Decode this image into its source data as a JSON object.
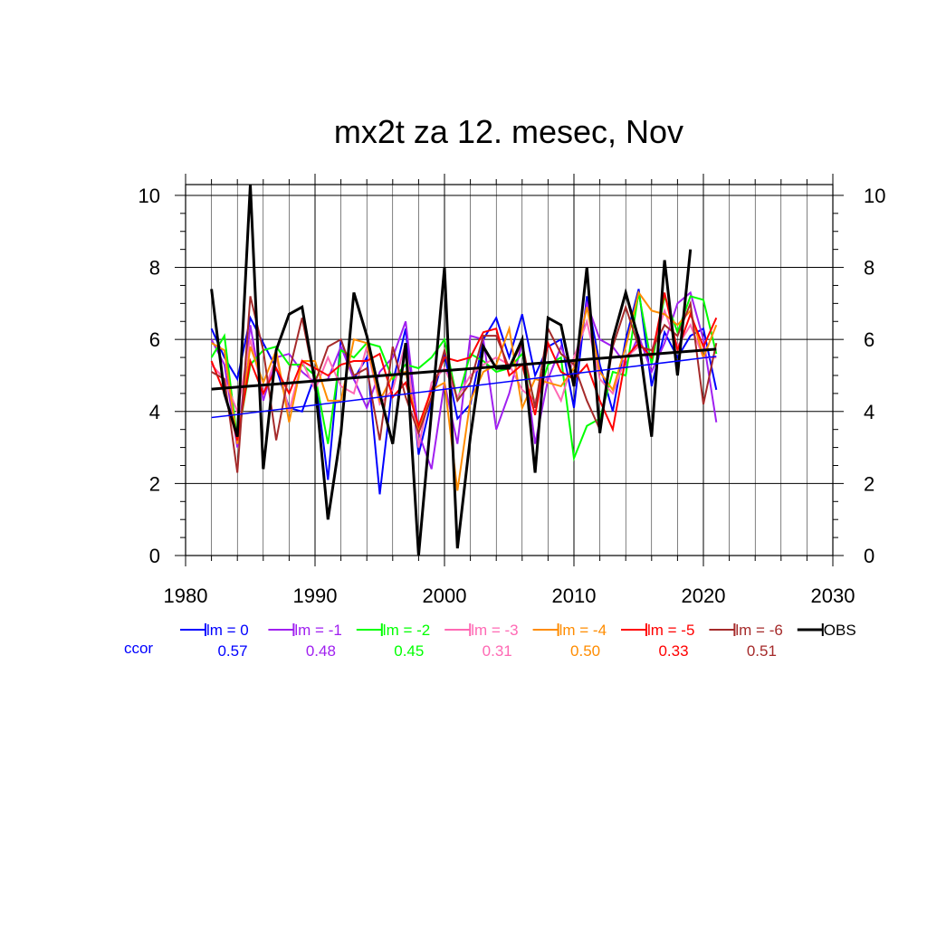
{
  "chart_data": {
    "type": "line",
    "title": "mx2t za 12. mesec, Nov",
    "xlabel": "",
    "ylabel": "",
    "xlim": [
      1980,
      2030
    ],
    "ylim": [
      0,
      10.3
    ],
    "x_ticks": [
      1980,
      1990,
      2000,
      2010,
      2020,
      2030
    ],
    "y_ticks": [
      0,
      2,
      4,
      6,
      8,
      10
    ],
    "grid": true,
    "legend_position": "bottom",
    "corr_label": "ccor",
    "years": [
      1982,
      1983,
      1984,
      1985,
      1986,
      1987,
      1988,
      1989,
      1990,
      1991,
      1992,
      1993,
      1994,
      1995,
      1996,
      1997,
      1998,
      1999,
      2000,
      2001,
      2002,
      2003,
      2004,
      2005,
      2006,
      2007,
      2008,
      2009,
      2010,
      2011,
      2012,
      2013,
      2014,
      2015,
      2016,
      2017,
      2018,
      2019,
      2020,
      2021
    ],
    "series": [
      {
        "name": "lm = 0",
        "color": "#0000ff",
        "ccor": "0.57",
        "values": [
          6.3,
          5.5,
          4.9,
          6.6,
          5.9,
          5.2,
          4.1,
          4.0,
          5.0,
          2.1,
          6.0,
          4.9,
          5.5,
          1.7,
          4.8,
          6.3,
          2.8,
          4.3,
          5.6,
          3.8,
          4.2,
          6.0,
          6.6,
          5.5,
          6.7,
          5.0,
          5.8,
          6.0,
          4.1,
          7.2,
          5.3,
          4.0,
          6.0,
          7.4,
          4.7,
          6.2,
          5.5,
          6.1,
          6.3,
          4.6
        ],
        "trend": [
          3.83,
          5.53
        ]
      },
      {
        "name": "lm = -1",
        "color": "#a020f0",
        "ccor": "0.48",
        "values": [
          6.0,
          5.3,
          3.0,
          6.4,
          4.3,
          5.5,
          5.6,
          5.1,
          4.8,
          4.9,
          5.8,
          4.9,
          4.1,
          5.1,
          5.5,
          6.5,
          3.4,
          2.4,
          4.8,
          3.1,
          6.1,
          6.0,
          3.5,
          4.5,
          5.9,
          3.1,
          4.9,
          5.8,
          4.9,
          7.0,
          6.0,
          5.8,
          5.3,
          6.1,
          5.1,
          5.9,
          7.0,
          7.3,
          6.0,
          3.7
        ],
        "trend": null
      },
      {
        "name": "lm = -2",
        "color": "#00ff00",
        "ccor": "0.45",
        "values": [
          5.5,
          6.1,
          3.2,
          5.3,
          5.7,
          5.8,
          5.3,
          5.3,
          5.0,
          3.1,
          5.7,
          5.5,
          5.9,
          5.8,
          4.9,
          5.3,
          5.2,
          5.5,
          6.0,
          4.3,
          5.6,
          5.4,
          5.1,
          5.2,
          5.6,
          4.2,
          5.3,
          5.5,
          2.7,
          3.6,
          3.8,
          5.1,
          5.0,
          7.3,
          5.3,
          7.2,
          6.2,
          7.2,
          7.1,
          5.6
        ],
        "trend": null
      },
      {
        "name": "lm = -3",
        "color": "#ff69b4",
        "ccor": "0.31",
        "values": [
          5.3,
          4.9,
          4.0,
          6.0,
          4.5,
          5.5,
          4.0,
          5.4,
          4.6,
          5.5,
          4.7,
          4.5,
          5.8,
          4.2,
          4.6,
          5.9,
          3.0,
          4.8,
          5.2,
          4.4,
          5.0,
          5.3,
          5.5,
          5.3,
          4.6,
          4.3,
          5.0,
          4.3,
          5.5,
          6.5,
          4.9,
          4.5,
          5.5,
          5.8,
          5.7,
          6.8,
          5.8,
          6.4,
          5.5,
          5.5
        ],
        "trend": null
      },
      {
        "name": "lm = -4",
        "color": "#ff8c00",
        "ccor": "0.50",
        "values": [
          5.9,
          5.7,
          3.1,
          5.8,
          4.8,
          5.7,
          3.7,
          5.4,
          5.4,
          4.3,
          4.3,
          6.0,
          5.9,
          4.3,
          5.0,
          5.1,
          3.5,
          4.6,
          4.8,
          1.8,
          4.3,
          5.1,
          5.3,
          6.3,
          4.1,
          4.9,
          4.8,
          4.7,
          5.2,
          6.9,
          5.1,
          4.6,
          5.8,
          7.3,
          6.8,
          6.7,
          6.4,
          6.8,
          5.5,
          6.4
        ],
        "trend": null
      },
      {
        "name": "lm = -5",
        "color": "#ff0000",
        "ccor": "0.33",
        "values": [
          5.4,
          4.5,
          3.2,
          5.4,
          4.5,
          5.2,
          4.5,
          5.4,
          5.2,
          5.0,
          5.3,
          5.4,
          5.4,
          5.6,
          4.4,
          4.8,
          3.6,
          4.6,
          5.5,
          5.4,
          5.5,
          6.2,
          6.3,
          5.0,
          5.3,
          3.9,
          5.9,
          5.1,
          4.9,
          5.3,
          4.3,
          3.5,
          5.5,
          5.9,
          5.5,
          7.3,
          5.7,
          6.7,
          5.8,
          6.6
        ],
        "trend": null
      },
      {
        "name": "lm = -6",
        "color": "#a52a2a",
        "ccor": "0.51",
        "values": [
          5.1,
          4.9,
          2.3,
          7.2,
          5.7,
          3.2,
          5.1,
          6.6,
          4.8,
          5.8,
          6.0,
          5.0,
          5.2,
          3.2,
          5.8,
          4.4,
          3.4,
          4.4,
          5.7,
          4.3,
          4.8,
          6.1,
          6.1,
          5.2,
          5.9,
          4.1,
          6.3,
          5.6,
          5.3,
          4.3,
          3.5,
          5.8,
          6.9,
          5.8,
          5.7,
          6.4,
          6.1,
          7.0,
          4.2,
          5.9
        ],
        "trend": null
      },
      {
        "name": "OBS",
        "color": "#000000",
        "ccor": "",
        "values": [
          7.4,
          4.5,
          3.3,
          10.3,
          2.4,
          5.7,
          6.7,
          6.9,
          4.8,
          1.0,
          3.4,
          7.3,
          6.1,
          4.5,
          3.1,
          5.9,
          0.0,
          4.0,
          8.0,
          0.2,
          3.3,
          5.8,
          5.2,
          5.2,
          6.0,
          2.3,
          6.6,
          6.4,
          4.7,
          8.0,
          3.4,
          6.0,
          7.3,
          6.0,
          3.3,
          8.2,
          5.0,
          8.5,
          null,
          null
        ],
        "trend": [
          4.62,
          5.73
        ]
      }
    ]
  }
}
